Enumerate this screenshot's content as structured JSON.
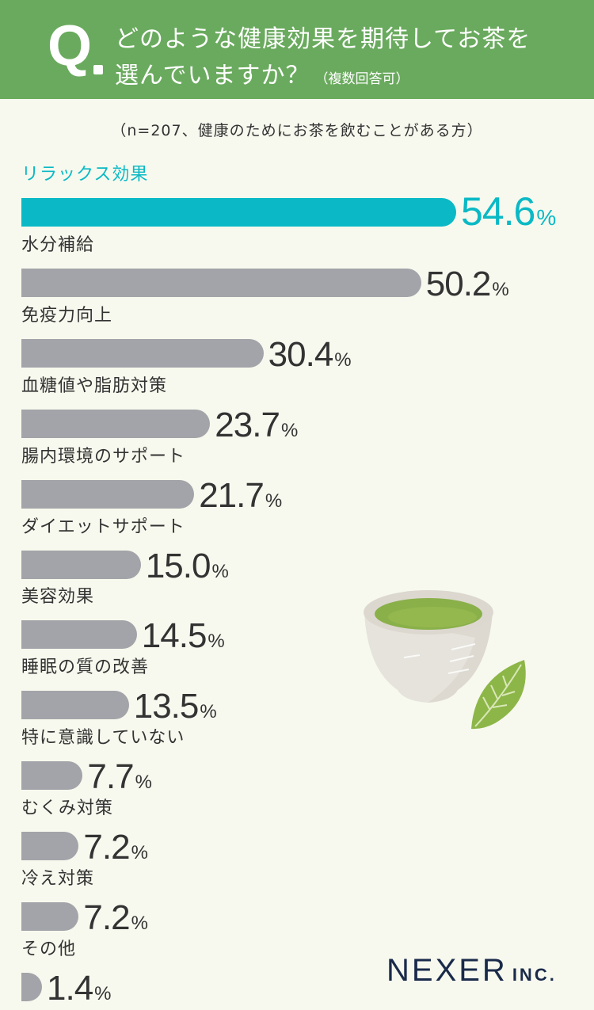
{
  "header": {
    "q_mark": "Q",
    "question_line1": "どのような健康効果を期待してお茶を",
    "question_line2": "選んでいますか？",
    "question_note": "（複数回答可）"
  },
  "sample_note": "（n=207、健康のためにお茶を飲むことがある方）",
  "logo": {
    "main": "NEXER",
    "sub": "INC."
  },
  "colors": {
    "header_bg": "#6aaa5e",
    "highlight": "#0ab9c5",
    "bar": "#a3a4a9",
    "background": "#f7f9ee"
  },
  "chart_data": {
    "type": "bar",
    "orientation": "horizontal",
    "unit": "%",
    "highlight_index": 0,
    "categories": [
      "リラックス効果",
      "水分補給",
      "免疫力向上",
      "血糖値や脂肪対策",
      "腸内環境のサポート",
      "ダイエットサポート",
      "美容効果",
      "睡眠の質の改善",
      "特に意識していない",
      "むくみ対策",
      "冷え対策",
      "その他"
    ],
    "values": [
      54.6,
      50.2,
      30.4,
      23.7,
      21.7,
      15.0,
      14.5,
      13.5,
      7.7,
      7.2,
      7.2,
      1.4
    ],
    "value_labels": [
      "54.6",
      "50.2",
      "30.4",
      "23.7",
      "21.7",
      "15.0",
      "14.5",
      "13.5",
      "7.7",
      "7.2",
      "7.2",
      "1.4"
    ]
  }
}
